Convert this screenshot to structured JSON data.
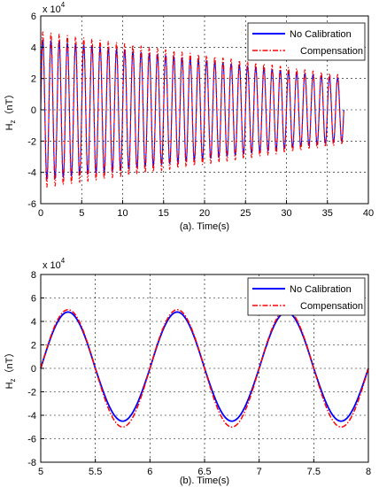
{
  "chart_data": [
    {
      "type": "line",
      "xlabel": "(a). Time(s)",
      "ylabel_main": "H",
      "ylabel_sub": "z",
      "ylabel_unit": "（nT）",
      "exponent_base": "x 10",
      "exponent_power": "4",
      "xlim": [
        0,
        40
      ],
      "ylim": [
        -6,
        6
      ],
      "y_unit_multiplier": 10000,
      "xticks": [
        "0",
        "5",
        "10",
        "15",
        "20",
        "25",
        "30",
        "35",
        "40"
      ],
      "yticks": [
        "-6",
        "-4",
        "-2",
        "0",
        "2",
        "4",
        "6"
      ],
      "grid": true,
      "legend_position": "top-right",
      "series": [
        {
          "name": "No Calibration",
          "color": "#0000ff",
          "style": "solid",
          "waveform": "damped-sine",
          "frequency_hz": 1.0,
          "amplitude_start": 4.5,
          "amplitude_end": 2.0,
          "t_start": 0,
          "t_end": 37
        },
        {
          "name": "Compensation",
          "color": "#ff0000",
          "style": "dash-dot",
          "waveform": "damped-sine",
          "frequency_hz": 1.0,
          "amplitude_start": 5.0,
          "amplitude_end": 2.2,
          "t_start": 0,
          "t_end": 37
        }
      ]
    },
    {
      "type": "line",
      "xlabel": "(b). Time(s)",
      "ylabel_main": "H",
      "ylabel_sub": "z",
      "ylabel_unit": "（nT）",
      "exponent_base": "x 10",
      "exponent_power": "4",
      "xlim": [
        5,
        8
      ],
      "ylim": [
        -8,
        8
      ],
      "y_unit_multiplier": 10000,
      "xticks": [
        "5",
        "5.5",
        "6",
        "6.5",
        "7",
        "7.5",
        "8"
      ],
      "yticks": [
        "-8",
        "-6",
        "-4",
        "-2",
        "0",
        "2",
        "4",
        "6",
        "8"
      ],
      "grid": true,
      "legend_position": "top-right",
      "series": [
        {
          "name": "No Calibration",
          "color": "#0000ff",
          "style": "solid",
          "waveform": "sine",
          "frequency_hz": 1.0,
          "phase_zero_at": 5.0,
          "peak": 4.8,
          "trough": -4.5,
          "t_start": 5,
          "t_end": 8
        },
        {
          "name": "Compensation",
          "color": "#ff0000",
          "style": "dash-dot",
          "waveform": "sine",
          "frequency_hz": 1.0,
          "phase_zero_at": 5.0,
          "peak": 5.0,
          "trough": -5.0,
          "t_start": 5,
          "t_end": 8
        }
      ]
    }
  ]
}
